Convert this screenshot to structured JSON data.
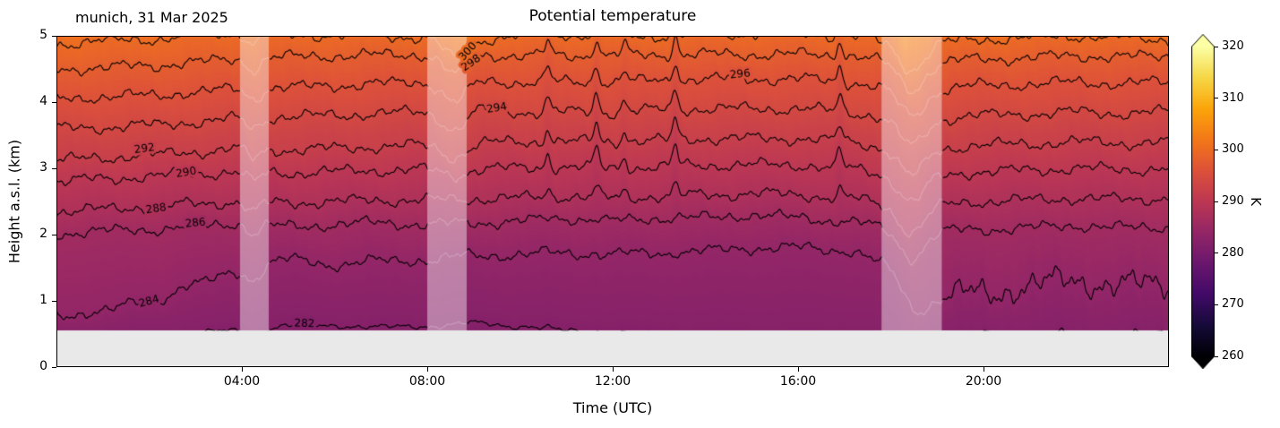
{
  "header": {
    "title": "Potential temperature",
    "annotation": "munich, 31 Mar 2025"
  },
  "axes": {
    "x": {
      "label": "Time (UTC)",
      "range_hours": [
        0,
        24
      ],
      "ticks": [
        {
          "value": 4,
          "label": "04:00"
        },
        {
          "value": 8,
          "label": "08:00"
        },
        {
          "value": 12,
          "label": "12:00"
        },
        {
          "value": 16,
          "label": "16:00"
        },
        {
          "value": 20,
          "label": "20:00"
        }
      ]
    },
    "y": {
      "label": "Height a.s.l. (km)",
      "range_km": [
        0,
        5
      ],
      "ticks": [
        {
          "value": 0,
          "label": "0"
        },
        {
          "value": 1,
          "label": "1"
        },
        {
          "value": 2,
          "label": "2"
        },
        {
          "value": 3,
          "label": "3"
        },
        {
          "value": 4,
          "label": "4"
        },
        {
          "value": 5,
          "label": "5"
        }
      ]
    }
  },
  "colorbar": {
    "label": "K",
    "range": [
      260,
      320
    ],
    "extend": "both",
    "ticks": [
      {
        "value": 260,
        "label": "260"
      },
      {
        "value": 270,
        "label": "270"
      },
      {
        "value": 280,
        "label": "280"
      },
      {
        "value": 290,
        "label": "290"
      },
      {
        "value": 300,
        "label": "300"
      },
      {
        "value": 310,
        "label": "310"
      },
      {
        "value": 320,
        "label": "320"
      }
    ],
    "colormap_anchors": [
      "#000004",
      "#160b39",
      "#420a68",
      "#6a176e",
      "#932667",
      "#bc3754",
      "#dd513a",
      "#f37819",
      "#fca50a",
      "#f6d746",
      "#fcffa4"
    ]
  },
  "chart_data": {
    "type": "heatmap",
    "subtype": "filled_contour_time_height",
    "variable": "potential temperature",
    "units": "K",
    "time_range_utc": [
      0,
      24
    ],
    "height_range_km": [
      0,
      5
    ],
    "no_data_below_km": 0.55,
    "floor_color": "#e9e9e9",
    "faded_band_overlay": {
      "color": "#ffffff",
      "opacity": 0.42
    },
    "faded_bands_utc": [
      [
        3.96,
        4.58
      ],
      [
        8.0,
        8.85
      ],
      [
        17.8,
        19.1
      ]
    ],
    "x_hours": [
      0,
      1,
      2,
      3,
      4,
      5,
      6,
      7,
      8,
      9,
      10,
      11,
      12,
      13,
      14,
      15,
      16,
      17,
      18,
      19,
      20,
      21,
      22,
      23,
      24
    ],
    "contour_levels": [
      282,
      284,
      286,
      288,
      290,
      292,
      294,
      296,
      298,
      300
    ],
    "contour_heights_km": {
      "282": [
        0.45,
        0.45,
        0.48,
        0.52,
        0.55,
        0.62,
        0.63,
        0.6,
        0.62,
        0.66,
        0.62,
        0.55,
        0.5,
        0.48,
        0.46,
        0.45,
        0.45,
        0.45,
        0.42,
        0.42,
        0.45,
        0.45,
        0.45,
        0.45,
        0.45
      ],
      "284": [
        0.78,
        0.85,
        1.0,
        1.25,
        1.45,
        1.62,
        1.55,
        1.6,
        1.62,
        1.68,
        1.7,
        1.72,
        1.7,
        1.72,
        1.75,
        1.8,
        1.8,
        1.76,
        1.55,
        1.05,
        1.12,
        1.22,
        1.32,
        1.22,
        1.28
      ],
      "286": [
        2.02,
        2.05,
        2.08,
        2.12,
        2.18,
        2.12,
        2.15,
        2.18,
        2.15,
        2.18,
        2.2,
        2.25,
        2.2,
        2.25,
        2.25,
        2.3,
        2.25,
        2.2,
        2.1,
        2.05,
        2.08,
        2.1,
        2.14,
        2.1,
        2.12
      ],
      "288": [
        2.35,
        2.38,
        2.42,
        2.46,
        2.5,
        2.48,
        2.5,
        2.52,
        2.52,
        2.54,
        2.55,
        2.58,
        2.55,
        2.58,
        2.6,
        2.62,
        2.6,
        2.55,
        2.46,
        2.45,
        2.5,
        2.52,
        2.55,
        2.53,
        2.55
      ],
      "290": [
        2.8,
        2.84,
        2.88,
        2.92,
        2.95,
        2.93,
        2.95,
        2.97,
        2.98,
        3.0,
        3.0,
        3.02,
        3.0,
        3.02,
        3.05,
        3.05,
        3.05,
        3.0,
        2.92,
        2.9,
        2.95,
        2.97,
        3.0,
        2.98,
        3.0
      ],
      "292": [
        3.12,
        3.16,
        3.2,
        3.25,
        3.3,
        3.28,
        3.3,
        3.33,
        3.35,
        3.38,
        3.4,
        3.4,
        3.4,
        3.42,
        3.45,
        3.45,
        3.45,
        3.4,
        3.32,
        3.3,
        3.35,
        3.37,
        3.4,
        3.38,
        3.4
      ],
      "294": [
        3.6,
        3.62,
        3.65,
        3.7,
        3.75,
        3.78,
        3.8,
        3.83,
        3.85,
        3.9,
        3.85,
        3.85,
        3.85,
        3.88,
        3.9,
        3.9,
        3.9,
        3.85,
        3.77,
        3.75,
        3.8,
        3.82,
        3.85,
        3.83,
        3.85
      ],
      "296": [
        4.05,
        4.08,
        4.1,
        4.15,
        4.2,
        4.22,
        4.25,
        4.28,
        4.3,
        4.32,
        4.3,
        4.3,
        4.3,
        4.32,
        4.35,
        4.35,
        4.35,
        4.3,
        4.22,
        4.2,
        4.25,
        4.27,
        4.3,
        4.28,
        4.3
      ],
      "298": [
        4.5,
        4.52,
        4.55,
        4.6,
        4.65,
        4.68,
        4.7,
        4.71,
        4.72,
        4.72,
        4.7,
        4.7,
        4.7,
        4.71,
        4.72,
        4.72,
        4.72,
        4.7,
        4.62,
        4.6,
        4.65,
        4.67,
        4.7,
        4.68,
        4.7
      ],
      "300": [
        4.88,
        4.92,
        4.95,
        5.0,
        5.05,
        5.0,
        5.02,
        5.0,
        4.98,
        4.95,
        5.0,
        5.02,
        5.0,
        5.0,
        5.02,
        5.04,
        5.05,
        5.0,
        4.92,
        4.9,
        4.95,
        4.97,
        5.0,
        4.97,
        4.95
      ]
    },
    "dips": [
      {
        "center": 4.25,
        "width": 0.2,
        "amplitude": 0.15,
        "upper_only": false
      },
      {
        "center": 8.6,
        "width": 0.35,
        "amplitude": 0.3,
        "upper_only": true
      },
      {
        "center": 18.45,
        "width": 0.38,
        "amplitude": 0.42,
        "upper_only": false
      }
    ],
    "spike_width": 0.08,
    "spikes": [
      {
        "t": 10.6,
        "amplitude": 0.22
      },
      {
        "t": 11.65,
        "amplitude": 0.28
      },
      {
        "t": 12.25,
        "amplitude": 0.18
      },
      {
        "t": 13.35,
        "amplitude": 0.3
      },
      {
        "t": 16.9,
        "amplitude": 0.25
      }
    ],
    "contour_labels": [
      {
        "level": 282,
        "t": 5.35,
        "rot": 2
      },
      {
        "level": 284,
        "t": 2.0,
        "rot": -15
      },
      {
        "level": 286,
        "t": 3.0,
        "rot": -6
      },
      {
        "level": 288,
        "t": 2.15,
        "rot": -8
      },
      {
        "level": 290,
        "t": 2.8,
        "rot": -9
      },
      {
        "level": 292,
        "t": 1.9,
        "rot": -7
      },
      {
        "level": 294,
        "t": 9.5,
        "rot": -10
      },
      {
        "level": 296,
        "t": 14.75,
        "rot": -6
      },
      {
        "level": 298,
        "t": 8.95,
        "rot": -35
      },
      {
        "level": 300,
        "t": 8.88,
        "rot": -48
      }
    ]
  }
}
